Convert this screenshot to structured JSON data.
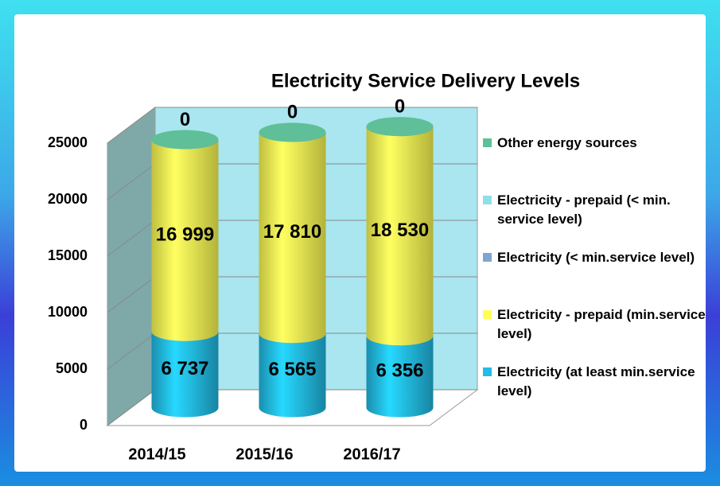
{
  "chart_data": {
    "type": "bar3d-cylinder-stacked",
    "title": "Electricity Service Delivery Levels",
    "categories": [
      "2014/15",
      "2015/16",
      "2016/17"
    ],
    "series": [
      {
        "name": "Electricity (at least min.service level)",
        "color": "#22bde8",
        "values": [
          6737,
          6565,
          6356
        ],
        "value_labels": [
          "6 737",
          "6 565",
          "6 356"
        ]
      },
      {
        "name": "Electricity - prepaid (min.service level)",
        "color": "#ffff55",
        "values": [
          16999,
          17810,
          18530
        ],
        "value_labels": [
          "16 999",
          "17 810",
          "18 530"
        ]
      },
      {
        "name": "Electricity (< min.service level)",
        "color": "#7fa6cf",
        "values": [
          0,
          0,
          0
        ]
      },
      {
        "name": "Electricity - prepaid (< min. service level)",
        "color": "#8fe0e6",
        "values": [
          0,
          0,
          0
        ]
      },
      {
        "name": "Other energy sources",
        "color": "#5fbf98",
        "values": [
          0,
          0,
          0
        ],
        "value_labels": [
          "0",
          "0",
          "0"
        ]
      }
    ],
    "ylim": [
      0,
      25000
    ],
    "yticks": [
      0,
      5000,
      10000,
      15000,
      20000,
      25000
    ],
    "grid": true,
    "legend": "right"
  }
}
